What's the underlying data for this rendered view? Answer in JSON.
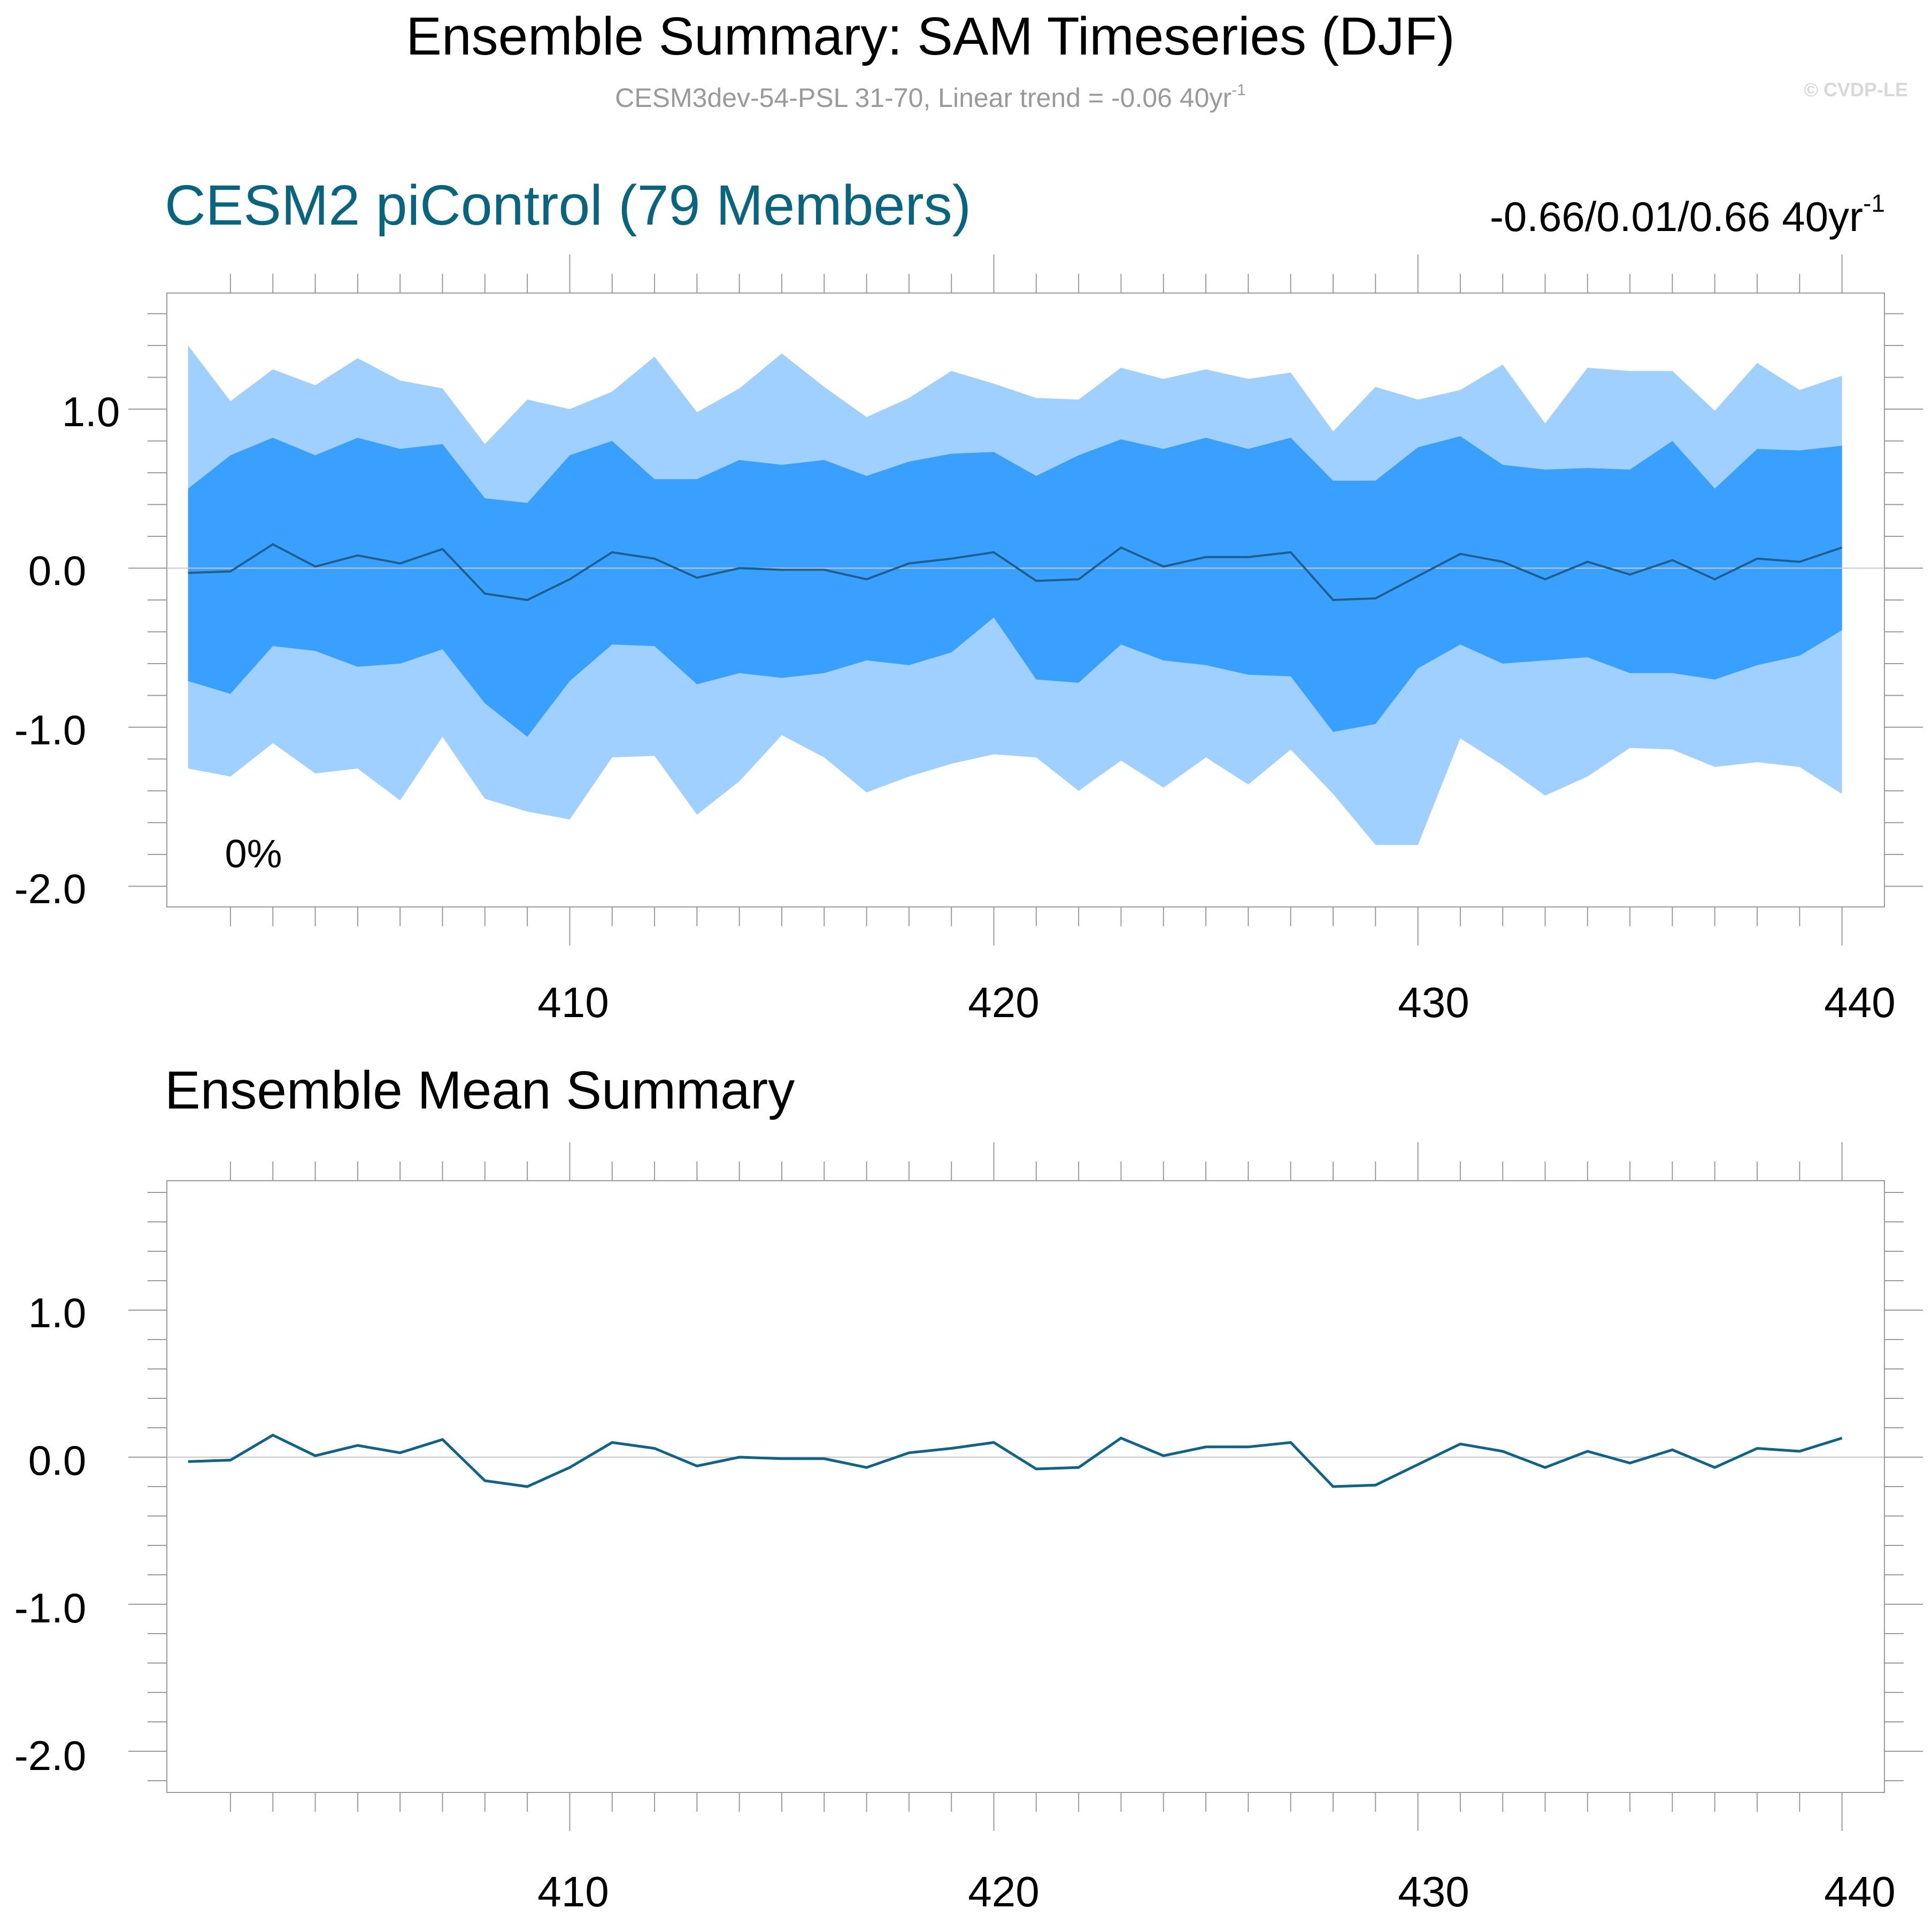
{
  "header": {
    "title": "Ensemble Summary: SAM Timeseries (DJF)",
    "subtitle_main": "CESM3dev-54-PSL 31-70, Linear trend = -0.06 40yr",
    "subtitle_sup": "-1",
    "copyright": "© CVDP-LE"
  },
  "colors": {
    "outer_band": "#a0d0ff",
    "inner_band": "#3aa0ff",
    "mean_line": "#1e5f8c",
    "mean_line_bottom": "#0e6387",
    "title_teal": "#08657f",
    "subtitle_gray": "#9a9a9a",
    "frame": "#9a9a9a"
  },
  "chart_data": [
    {
      "type": "area",
      "title": "CESM2 piControl (79 Members)",
      "stat_main": "-0.66/0.01/0.66 40yr",
      "stat_sup": "-1",
      "annotation": "0%",
      "x": [
        401,
        402,
        403,
        404,
        405,
        406,
        407,
        408,
        409,
        410,
        411,
        412,
        413,
        414,
        415,
        416,
        417,
        418,
        419,
        420,
        421,
        422,
        423,
        424,
        425,
        426,
        427,
        428,
        429,
        430,
        431,
        432,
        433,
        434,
        435,
        436,
        437,
        438,
        439,
        440
      ],
      "outer_upper": [
        1.4,
        1.05,
        1.25,
        1.15,
        1.32,
        1.18,
        1.13,
        0.78,
        1.06,
        1.0,
        1.11,
        1.33,
        0.98,
        1.13,
        1.35,
        1.14,
        0.95,
        1.07,
        1.24,
        1.16,
        1.07,
        1.06,
        1.26,
        1.19,
        1.25,
        1.19,
        1.23,
        0.86,
        1.14,
        1.06,
        1.12,
        1.28,
        0.91,
        1.26,
        1.24,
        1.24,
        0.99,
        1.29,
        1.12,
        1.21
      ],
      "inner_upper": [
        0.5,
        0.71,
        0.82,
        0.71,
        0.82,
        0.75,
        0.78,
        0.44,
        0.41,
        0.71,
        0.8,
        0.56,
        0.56,
        0.68,
        0.65,
        0.68,
        0.58,
        0.67,
        0.72,
        0.73,
        0.58,
        0.71,
        0.81,
        0.75,
        0.82,
        0.75,
        0.82,
        0.55,
        0.55,
        0.76,
        0.83,
        0.65,
        0.62,
        0.63,
        0.62,
        0.8,
        0.5,
        0.75,
        0.74,
        0.77
      ],
      "mean": [
        -0.03,
        -0.02,
        0.15,
        0.01,
        0.08,
        0.03,
        0.12,
        -0.16,
        -0.2,
        -0.07,
        0.1,
        0.06,
        -0.06,
        0.0,
        -0.01,
        -0.01,
        -0.07,
        0.03,
        0.06,
        0.1,
        -0.08,
        -0.07,
        0.13,
        0.01,
        0.07,
        0.07,
        0.1,
        -0.2,
        -0.19,
        -0.05,
        0.09,
        0.04,
        -0.07,
        0.04,
        -0.04,
        0.05,
        -0.07,
        0.06,
        0.04,
        0.13
      ],
      "inner_lower": [
        -0.71,
        -0.79,
        -0.49,
        -0.52,
        -0.62,
        -0.6,
        -0.51,
        -0.85,
        -1.06,
        -0.71,
        -0.48,
        -0.49,
        -0.73,
        -0.66,
        -0.69,
        -0.66,
        -0.58,
        -0.61,
        -0.53,
        -0.31,
        -0.7,
        -0.72,
        -0.48,
        -0.58,
        -0.61,
        -0.67,
        -0.68,
        -1.03,
        -0.98,
        -0.63,
        -0.48,
        -0.6,
        -0.58,
        -0.56,
        -0.66,
        -0.66,
        -0.7,
        -0.61,
        -0.55,
        -0.39
      ],
      "outer_lower": [
        -1.26,
        -1.31,
        -1.1,
        -1.29,
        -1.26,
        -1.46,
        -1.06,
        -1.45,
        -1.53,
        -1.58,
        -1.19,
        -1.18,
        -1.55,
        -1.34,
        -1.05,
        -1.19,
        -1.41,
        -1.31,
        -1.23,
        -1.17,
        -1.19,
        -1.4,
        -1.21,
        -1.38,
        -1.19,
        -1.36,
        -1.14,
        -1.42,
        -1.74,
        -1.74,
        -1.07,
        -1.24,
        -1.43,
        -1.31,
        -1.13,
        -1.14,
        -1.25,
        -1.22,
        -1.25,
        -1.42
      ],
      "ylim": [
        -2.13,
        1.73
      ],
      "xlim": [
        400.5,
        441.0
      ],
      "yticks": [
        "1.0",
        "0.0",
        "-1.0",
        "-2.0"
      ],
      "xticks": [
        "410",
        "420",
        "430",
        "440"
      ],
      "legend": "none"
    },
    {
      "type": "line",
      "title": "Ensemble Mean Summary",
      "x": [
        401,
        402,
        403,
        404,
        405,
        406,
        407,
        408,
        409,
        410,
        411,
        412,
        413,
        414,
        415,
        416,
        417,
        418,
        419,
        420,
        421,
        422,
        423,
        424,
        425,
        426,
        427,
        428,
        429,
        430,
        431,
        432,
        433,
        434,
        435,
        436,
        437,
        438,
        439,
        440
      ],
      "mean": [
        -0.03,
        -0.02,
        0.15,
        0.01,
        0.08,
        0.03,
        0.12,
        -0.16,
        -0.2,
        -0.07,
        0.1,
        0.06,
        -0.06,
        0.0,
        -0.01,
        -0.01,
        -0.07,
        0.03,
        0.06,
        0.1,
        -0.08,
        -0.07,
        0.13,
        0.01,
        0.07,
        0.07,
        0.1,
        -0.2,
        -0.19,
        -0.05,
        0.09,
        0.04,
        -0.07,
        0.04,
        -0.04,
        0.05,
        -0.07,
        0.06,
        0.04,
        0.13
      ],
      "ylim": [
        -2.28,
        1.88
      ],
      "xlim": [
        400.5,
        441.0
      ],
      "yticks": [
        "1.0",
        "0.0",
        "-1.0",
        "-2.0"
      ],
      "xticks": [
        "410",
        "420",
        "430",
        "440"
      ],
      "legend": "none"
    }
  ]
}
